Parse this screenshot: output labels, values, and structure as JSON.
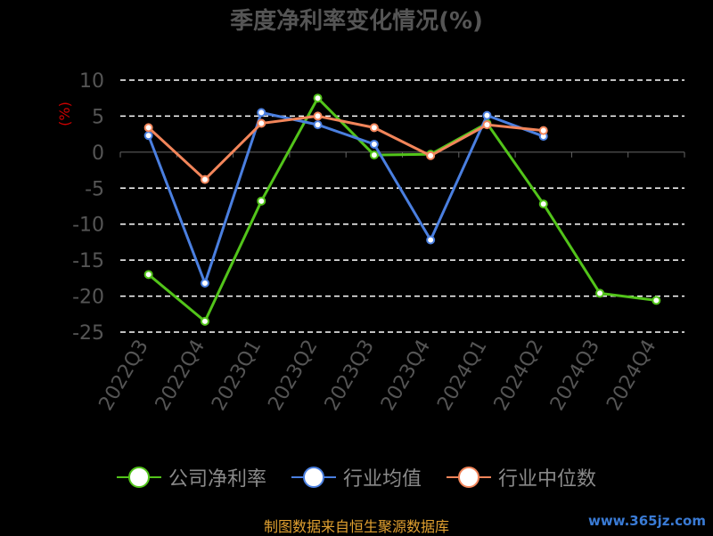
{
  "chart_data": {
    "type": "line",
    "title": "季度净利率变化情况(%)",
    "ylabel": "(%)",
    "xlabel": "",
    "categories": [
      "2022Q3",
      "2022Q4",
      "2023Q1",
      "2023Q2",
      "2023Q3",
      "2023Q4",
      "2024Q1",
      "2024Q2",
      "2024Q3",
      "2024Q4"
    ],
    "ylim": [
      -25,
      10
    ],
    "yticks": [
      10,
      5,
      0,
      -5,
      -10,
      -15,
      -20,
      -25
    ],
    "grid": true,
    "legend_position": "bottom",
    "series": [
      {
        "name": "公司净利率",
        "color": "#52c41a",
        "values": [
          -17,
          -23.5,
          -6.8,
          7.5,
          -0.4,
          -0.3,
          4,
          -7.2,
          -19.6,
          -20.6
        ]
      },
      {
        "name": "行业均值",
        "color": "#4a7fe0",
        "values": [
          2.3,
          -18.2,
          5.5,
          3.8,
          1.1,
          -12.2,
          5.1,
          2.2,
          null,
          null
        ]
      },
      {
        "name": "行业中位数",
        "color": "#f2855a",
        "values": [
          3.4,
          -3.8,
          4,
          5,
          3.4,
          -0.5,
          3.8,
          3,
          null,
          null
        ]
      }
    ]
  },
  "source_text": "制图数据来自恒生聚源数据库",
  "watermark_text": "www.365jz.com"
}
